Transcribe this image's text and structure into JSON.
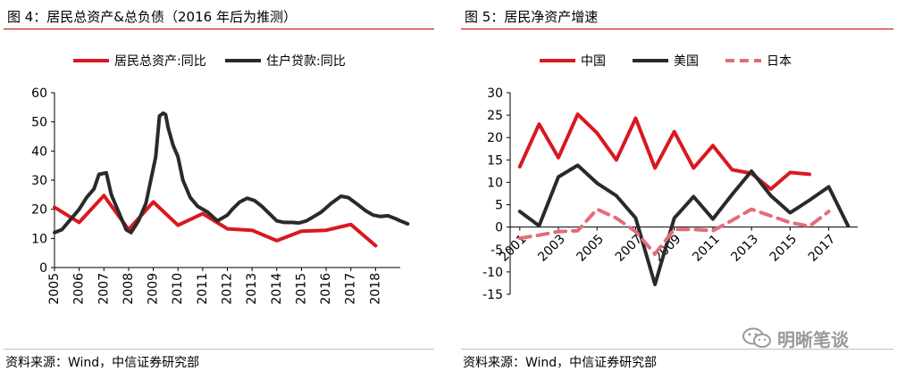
{
  "panels": [
    {
      "title": "图 4：居民总资产&总负债（2016 年后为推测）",
      "source": "资料来源：Wind，中信证券研究部"
    },
    {
      "title": "图 5：居民净资产增速",
      "source": "资料来源：Wind，中信证券研究部"
    }
  ],
  "watermark": {
    "text": "明晰笔谈",
    "icon": "wechat-icon"
  },
  "colors": {
    "red": "#d9181f",
    "black": "#2a2a2a",
    "pink": "#e46c7a",
    "rule": "#c00000"
  },
  "chart_data": [
    {
      "type": "line",
      "title": "",
      "xlabel": "",
      "ylabel": "",
      "ylim": [
        0,
        60
      ],
      "yticks": [
        0,
        10,
        20,
        30,
        40,
        50,
        60
      ],
      "xlim": [
        2005,
        2019
      ],
      "xticks": [
        "2005",
        "2006",
        "2007",
        "2008",
        "2009",
        "2010",
        "2011",
        "2012",
        "2013",
        "2014",
        "2015",
        "2016",
        "2017",
        "2018"
      ],
      "legend": "top",
      "grid": false,
      "series": [
        {
          "name": "居民总资产:同比",
          "color": "#d9181f",
          "style": "solid",
          "points": [
            [
              2005,
              20.7
            ],
            [
              2006,
              15.5
            ],
            [
              2007,
              24.7
            ],
            [
              2008,
              13.0
            ],
            [
              2009,
              22.5
            ],
            [
              2010,
              14.5
            ],
            [
              2011,
              18.5
            ],
            [
              2012,
              13.3
            ],
            [
              2013,
              12.8
            ],
            [
              2014,
              9.2
            ],
            [
              2015,
              12.5
            ],
            [
              2016,
              12.8
            ],
            [
              2017,
              14.8
            ],
            [
              2018,
              7.5
            ]
          ]
        },
        {
          "name": "住户贷款:同比",
          "color": "#2a2a2a",
          "style": "solid",
          "points": [
            [
              2005,
              12
            ],
            [
              2005.3,
              13
            ],
            [
              2005.6,
              16
            ],
            [
              2006,
              20
            ],
            [
              2006.3,
              24
            ],
            [
              2006.6,
              27
            ],
            [
              2006.8,
              32
            ],
            [
              2007.1,
              32.5
            ],
            [
              2007.3,
              25
            ],
            [
              2007.6,
              19
            ],
            [
              2007.9,
              13
            ],
            [
              2008.1,
              12
            ],
            [
              2008.4,
              16
            ],
            [
              2008.7,
              22
            ],
            [
              2008.9,
              30
            ],
            [
              2009.1,
              38
            ],
            [
              2009.25,
              52
            ],
            [
              2009.4,
              53
            ],
            [
              2009.5,
              52.5
            ],
            [
              2009.6,
              48
            ],
            [
              2009.8,
              42
            ],
            [
              2010,
              38
            ],
            [
              2010.2,
              30
            ],
            [
              2010.5,
              24
            ],
            [
              2010.8,
              21
            ],
            [
              2011.2,
              19
            ],
            [
              2011.6,
              16
            ],
            [
              2012.0,
              18
            ],
            [
              2012.2,
              20
            ],
            [
              2012.5,
              22.5
            ],
            [
              2012.8,
              23.8
            ],
            [
              2013.1,
              23
            ],
            [
              2013.4,
              21
            ],
            [
              2013.7,
              18.5
            ],
            [
              2014.0,
              16
            ],
            [
              2014.3,
              15.5
            ],
            [
              2014.6,
              15.5
            ],
            [
              2014.9,
              15.3
            ],
            [
              2015.2,
              16
            ],
            [
              2015.5,
              17.5
            ],
            [
              2015.8,
              19
            ],
            [
              2016.2,
              22
            ],
            [
              2016.6,
              24.5
            ],
            [
              2016.9,
              24
            ],
            [
              2017.3,
              21.5
            ],
            [
              2017.6,
              19.5
            ],
            [
              2017.9,
              18
            ],
            [
              2018.2,
              17.5
            ],
            [
              2018.5,
              17.8
            ],
            [
              2018.8,
              16.8
            ],
            [
              2019.0,
              16
            ],
            [
              2019.3,
              15
            ]
          ]
        }
      ]
    },
    {
      "type": "line",
      "title": "",
      "xlabel": "",
      "ylabel": "",
      "ylim": [
        -15,
        30
      ],
      "yticks": [
        -15,
        -10,
        -5,
        0,
        5,
        10,
        15,
        20,
        25,
        30
      ],
      "xlim": [
        2000.5,
        2018.5
      ],
      "xticks": [
        "2001",
        "2003",
        "2005",
        "2007",
        "2009",
        "2011",
        "2013",
        "2015",
        "2017"
      ],
      "legend": "top",
      "grid": false,
      "series": [
        {
          "name": "中国",
          "color": "#d9181f",
          "style": "solid",
          "points": [
            [
              2001,
              13.5
            ],
            [
              2002,
              23.0
            ],
            [
              2003,
              15.5
            ],
            [
              2004,
              25.2
            ],
            [
              2005,
              21.0
            ],
            [
              2006,
              15.0
            ],
            [
              2007,
              24.3
            ],
            [
              2008,
              13.2
            ],
            [
              2009,
              21.3
            ],
            [
              2010,
              13.2
            ],
            [
              2011,
              18.2
            ],
            [
              2012,
              12.8
            ],
            [
              2013,
              12.0
            ],
            [
              2014,
              8.5
            ],
            [
              2015,
              12.2
            ],
            [
              2016,
              11.8
            ]
          ]
        },
        {
          "name": "美国",
          "color": "#2a2a2a",
          "style": "solid",
          "points": [
            [
              2001,
              3.5
            ],
            [
              2002,
              0.3
            ],
            [
              2003,
              11.2
            ],
            [
              2004,
              13.8
            ],
            [
              2005,
              9.8
            ],
            [
              2006,
              7.0
            ],
            [
              2007,
              2.0
            ],
            [
              2008,
              -12.8
            ],
            [
              2009,
              2.0
            ],
            [
              2010,
              6.8
            ],
            [
              2011,
              1.8
            ],
            [
              2012,
              7.3
            ],
            [
              2013,
              12.5
            ],
            [
              2014,
              7.0
            ],
            [
              2015,
              3.2
            ],
            [
              2016,
              6.0
            ],
            [
              2017,
              9.0
            ],
            [
              2018,
              0.3
            ]
          ]
        },
        {
          "name": "日本",
          "color": "#e46c7a",
          "style": "dashed",
          "points": [
            [
              2001,
              -2.5
            ],
            [
              2002,
              -1.8
            ],
            [
              2003,
              -1.0
            ],
            [
              2004,
              -0.8
            ],
            [
              2005,
              4.0
            ],
            [
              2006,
              2.0
            ],
            [
              2007,
              -1.0
            ],
            [
              2008,
              -6.0
            ],
            [
              2009,
              -0.5
            ],
            [
              2010,
              -0.5
            ],
            [
              2011,
              -0.8
            ],
            [
              2012,
              1.5
            ],
            [
              2013,
              4.0
            ],
            [
              2014,
              2.5
            ],
            [
              2015,
              1.0
            ],
            [
              2016,
              0.2
            ],
            [
              2017,
              3.5
            ]
          ]
        }
      ]
    }
  ]
}
